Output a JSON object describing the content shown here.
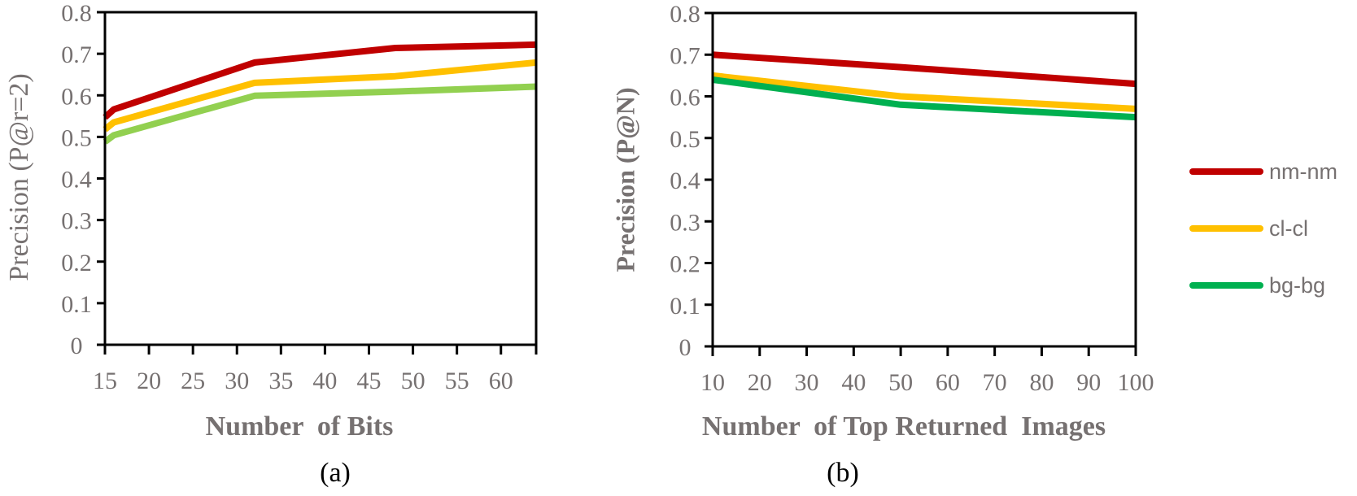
{
  "chart_data": [
    {
      "type": "line",
      "panel": "(a)",
      "caption": "(a)",
      "title": "",
      "xlabel": "Number  of Bits",
      "ylabel": "Precision (P@r=2)",
      "xlim": [
        15,
        64
      ],
      "ylim": [
        0,
        0.8
      ],
      "xticks": [
        15,
        20,
        25,
        30,
        35,
        40,
        45,
        50,
        55,
        60
      ],
      "xtick_labels": [
        "15",
        "20",
        "25",
        "30",
        "35",
        "40",
        "45",
        "50",
        "55",
        "60"
      ],
      "yticks": [
        0,
        0.1,
        0.2,
        0.3,
        0.4,
        0.5,
        0.6,
        0.7,
        0.8
      ],
      "ytick_labels": [
        "0",
        "0.1",
        "0.2",
        "0.3",
        "0.4",
        "0.5",
        "0.6",
        "0.7",
        "0.8"
      ],
      "grid": false,
      "x": [
        15,
        16,
        32,
        48,
        64
      ],
      "series": [
        {
          "name": "nm-nm",
          "color": "#C00000",
          "values": [
            0.547,
            0.566,
            0.679,
            0.714,
            0.722
          ]
        },
        {
          "name": "cl-cl",
          "color": "#FFC000",
          "values": [
            0.518,
            0.535,
            0.63,
            0.646,
            0.679
          ]
        },
        {
          "name": "bg-bg",
          "color": "#92D050",
          "values": [
            0.488,
            0.504,
            0.599,
            0.609,
            0.621
          ]
        }
      ]
    },
    {
      "type": "line",
      "panel": "(b)",
      "caption": "(b)",
      "title": "",
      "xlabel": "Number  of Top Returned  Images",
      "ylabel": "Precision (P@N)",
      "xlim": [
        10,
        100
      ],
      "ylim": [
        0,
        0.8
      ],
      "xticks": [
        10,
        20,
        30,
        40,
        50,
        60,
        70,
        80,
        90,
        100
      ],
      "xtick_labels": [
        "10",
        "20",
        "30",
        "40",
        "50",
        "60",
        "70",
        "80",
        "90",
        "100"
      ],
      "yticks": [
        0,
        0.1,
        0.2,
        0.3,
        0.4,
        0.5,
        0.6,
        0.7,
        0.8
      ],
      "ytick_labels": [
        "0",
        "0.1",
        "0.2",
        "0.3",
        "0.4",
        "0.5",
        "0.6",
        "0.7",
        "0.8"
      ],
      "grid": false,
      "legend_position": "right",
      "x": [
        10,
        50,
        100
      ],
      "series": [
        {
          "name": "nm-nm",
          "color": "#C00000",
          "values": [
            0.7,
            0.67,
            0.63
          ]
        },
        {
          "name": "cl-cl",
          "color": "#FFC000",
          "values": [
            0.65,
            0.6,
            0.57
          ]
        },
        {
          "name": "bg-bg",
          "color": "#00B050",
          "values": [
            0.64,
            0.58,
            0.55
          ]
        }
      ]
    }
  ],
  "legend": {
    "position": "right",
    "items": [
      {
        "label": "nm-nm",
        "color": "#C00000"
      },
      {
        "label": "cl-cl",
        "color": "#FFC000"
      },
      {
        "label": "bg-bg",
        "color": "#00B050"
      }
    ]
  }
}
